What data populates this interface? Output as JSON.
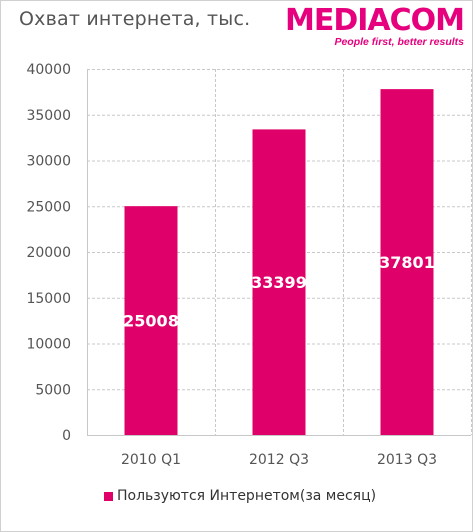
{
  "header": {
    "title": "Охват интернета, тыс.",
    "logo_text": "MEDIACOM",
    "logo_tagline": "People first, better results"
  },
  "colors": {
    "accent": "#e6007e",
    "bar": "#e0006a",
    "grid": "#c8c8c8",
    "axis_text": "#555555"
  },
  "chart_data": {
    "type": "bar",
    "title": "Охват интернета, тыс.",
    "categories": [
      "2010 Q1",
      "2012 Q3",
      "2013 Q3"
    ],
    "series": [
      {
        "name": "Пользуются Интернетом(за месяц)",
        "values": [
          25008,
          33399,
          37801
        ]
      }
    ],
    "ylim": [
      0,
      40000
    ],
    "yticks": [
      0,
      5000,
      10000,
      15000,
      20000,
      25000,
      30000,
      35000,
      40000
    ],
    "data_labels": true,
    "grid": true,
    "legend": "bottom"
  }
}
